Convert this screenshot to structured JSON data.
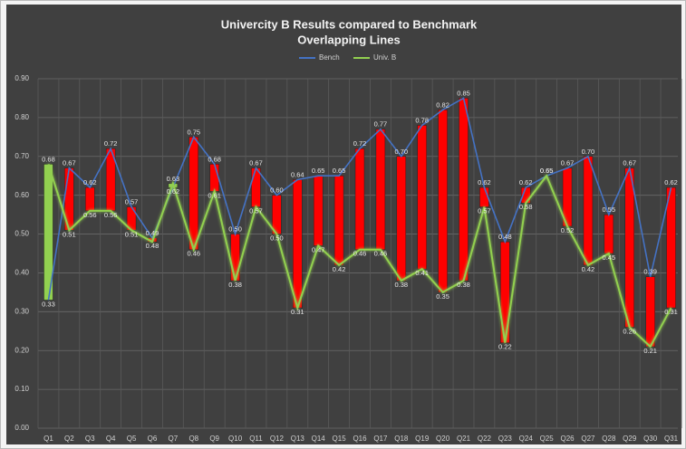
{
  "chart_data": {
    "type": "line",
    "title": "Univercity B Results compared to Benchmark",
    "subtitle": "Overlapping Lines",
    "categories": [
      "Q1",
      "Q2",
      "Q3",
      "Q4",
      "Q5",
      "Q6",
      "Q7",
      "Q8",
      "Q9",
      "Q10",
      "Q11",
      "Q12",
      "Q13",
      "Q14",
      "Q15",
      "Q16",
      "Q17",
      "Q18",
      "Q19",
      "Q20",
      "Q21",
      "Q22",
      "Q23",
      "Q24",
      "Q25",
      "Q26",
      "Q27",
      "Q28",
      "Q29",
      "Q30",
      "Q31"
    ],
    "series": [
      {
        "name": "Bench",
        "color": "#4472c4",
        "values": [
          0.33,
          0.67,
          0.62,
          0.72,
          0.57,
          0.49,
          0.62,
          0.75,
          0.68,
          0.5,
          0.67,
          0.6,
          0.64,
          0.65,
          0.65,
          0.72,
          0.77,
          0.7,
          0.78,
          0.82,
          0.85,
          0.62,
          0.48,
          0.62,
          0.65,
          0.67,
          0.7,
          0.55,
          0.67,
          0.39,
          0.62
        ],
        "value_labels": [
          "0.33",
          "0.67",
          "0.62",
          "0.72",
          "0.57",
          "0.49",
          "0.62",
          "0.75",
          "0.68",
          "0.50",
          "0.67",
          "0.60",
          "0.64",
          "0.65",
          "0.65",
          "0.72",
          "0.77",
          "0.70",
          "0.78",
          "0.82",
          "0.85",
          "0.62",
          "0.48",
          "0.62",
          "0.65",
          "0.67",
          "0.70",
          "0.55",
          "0.67",
          "0.39",
          "0.62"
        ]
      },
      {
        "name": "Univ. B",
        "color": "#92d050",
        "values": [
          0.68,
          0.51,
          0.56,
          0.56,
          0.51,
          0.48,
          0.63,
          0.46,
          0.61,
          0.38,
          0.57,
          0.5,
          0.31,
          0.47,
          0.42,
          0.46,
          0.46,
          0.38,
          0.41,
          0.35,
          0.38,
          0.57,
          0.22,
          0.58,
          0.65,
          0.52,
          0.42,
          0.45,
          0.26,
          0.21,
          0.31
        ],
        "value_labels": [
          "0.68",
          "0.51",
          "0.56",
          "0.56",
          "0.51",
          "0.48",
          "0.63",
          "0.46",
          "0.61",
          "0.38",
          "0.57",
          "0.50",
          "0.31",
          "0.47",
          "0.42",
          "0.46",
          "0.46",
          "0.38",
          "0.41",
          "0.35",
          "0.38",
          "0.57",
          "0.22",
          "0.58",
          "0.65",
          "0.52",
          "0.42",
          "0.45",
          "0.26",
          "0.21",
          "0.31"
        ]
      }
    ],
    "bar_colors": {
      "below": "#ff0000",
      "above": "#92d050"
    },
    "ylim": [
      0,
      0.9
    ],
    "yticks": [
      {
        "value": 0,
        "label": "0.00"
      },
      {
        "value": 0.1,
        "label": "0.10"
      },
      {
        "value": 0.2,
        "label": "0.20"
      },
      {
        "value": 0.3,
        "label": "0.30"
      },
      {
        "value": 0.4,
        "label": "0.40"
      },
      {
        "value": 0.5,
        "label": "0.50"
      },
      {
        "value": 0.6,
        "label": "0.60"
      },
      {
        "value": 0.7,
        "label": "0.70"
      },
      {
        "value": 0.8,
        "label": "0.80"
      },
      {
        "value": 0.9,
        "label": "0.90"
      }
    ],
    "grid": true,
    "legend": "top"
  }
}
